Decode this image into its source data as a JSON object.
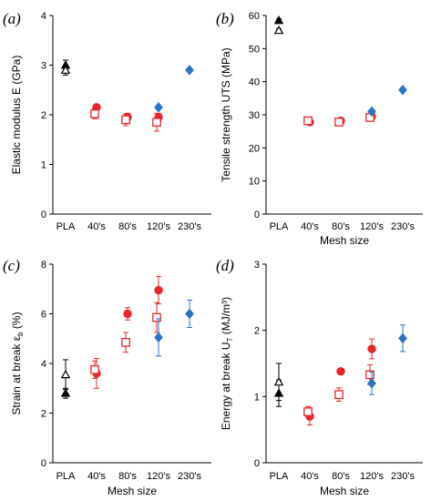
{
  "colors": {
    "black": "#000000",
    "red": "#e8262a",
    "blue": "#2b74c3"
  },
  "legend_markers": {
    "PLA": [
      "filled-triangle",
      "open-triangle"
    ],
    "40s_80s_120s": [
      "filled-circle",
      "open-square"
    ],
    "120s_230s": "blue-diamond"
  },
  "chart_data": [
    {
      "type": "scatter",
      "panel_label": "(a)",
      "ylabel": "Elastic modulus E (GPa)",
      "xlabel": "",
      "categories": [
        "PLA",
        "40's",
        "80's",
        "120's",
        "230's"
      ],
      "ylim": [
        0,
        4
      ],
      "yticks": [
        "0",
        "1",
        "2",
        "3",
        "4"
      ],
      "series": [
        {
          "marker": "filled-triangle",
          "color": "black",
          "points": [
            {
              "x": "PLA",
              "y": 3.0,
              "err": 0.1
            }
          ]
        },
        {
          "marker": "open-triangle",
          "color": "black",
          "points": [
            {
              "x": "PLA",
              "y": 2.9,
              "err": 0.1
            }
          ]
        },
        {
          "marker": "filled-circle",
          "color": "red",
          "points": [
            {
              "x": "40's",
              "y": 2.15,
              "err": 0.04
            },
            {
              "x": "80's",
              "y": 1.95,
              "err": 0.08
            },
            {
              "x": "120's",
              "y": 1.95,
              "err": 0.08
            }
          ]
        },
        {
          "marker": "open-square",
          "color": "red",
          "points": [
            {
              "x": "40's",
              "y": 2.02,
              "err": 0.1
            },
            {
              "x": "80's",
              "y": 1.9,
              "err": 0.12
            },
            {
              "x": "120's",
              "y": 1.85,
              "err": 0.18
            }
          ]
        },
        {
          "marker": "diamond",
          "color": "blue",
          "points": [
            {
              "x": "120's",
              "y": 2.15,
              "err": 0.04
            },
            {
              "x": "230's",
              "y": 2.9,
              "err": 0.03
            }
          ]
        }
      ]
    },
    {
      "type": "scatter",
      "panel_label": "(b)",
      "ylabel": "Tensile strength UTS (MPa)",
      "xlabel": "Mesh size",
      "categories": [
        "PLA",
        "40's",
        "80's",
        "120's",
        "230's"
      ],
      "ylim": [
        0,
        60
      ],
      "yticks": [
        "0",
        "10",
        "20",
        "30",
        "40",
        "50",
        "60"
      ],
      "series": [
        {
          "marker": "filled-triangle",
          "color": "black",
          "points": [
            {
              "x": "PLA",
              "y": 58.5,
              "err": 0.5
            }
          ]
        },
        {
          "marker": "open-triangle",
          "color": "black",
          "points": [
            {
              "x": "PLA",
              "y": 55.5,
              "err": 0.5
            }
          ]
        },
        {
          "marker": "filled-circle",
          "color": "red",
          "points": [
            {
              "x": "40's",
              "y": 27.8,
              "err": 0.4
            },
            {
              "x": "80's",
              "y": 28.2,
              "err": 0.4
            },
            {
              "x": "120's",
              "y": 29.5,
              "err": 0.5
            }
          ]
        },
        {
          "marker": "open-square",
          "color": "red",
          "points": [
            {
              "x": "40's",
              "y": 28.2,
              "err": 0.4
            },
            {
              "x": "80's",
              "y": 27.8,
              "err": 0.5
            },
            {
              "x": "120's",
              "y": 29.2,
              "err": 0.5
            }
          ]
        },
        {
          "marker": "diamond",
          "color": "blue",
          "points": [
            {
              "x": "120's",
              "y": 31.0,
              "err": 0.4
            },
            {
              "x": "230's",
              "y": 37.5,
              "err": 0.3
            }
          ]
        }
      ]
    },
    {
      "type": "scatter",
      "panel_label": "(c)",
      "ylabel": "Strain at break εb (%)",
      "ylabel_parts": [
        "Strain at break ε",
        "b",
        " (%)"
      ],
      "xlabel": "Mesh size",
      "categories": [
        "PLA",
        "40's",
        "80's",
        "120's",
        "230's"
      ],
      "ylim": [
        0,
        8
      ],
      "yticks": [
        "0",
        "2",
        "4",
        "6",
        "8"
      ],
      "series": [
        {
          "marker": "filled-triangle",
          "color": "black",
          "points": [
            {
              "x": "PLA",
              "y": 2.8,
              "err": 0.2
            }
          ]
        },
        {
          "marker": "open-triangle",
          "color": "black",
          "points": [
            {
              "x": "PLA",
              "y": 3.55,
              "err": 0.6
            }
          ]
        },
        {
          "marker": "filled-circle",
          "color": "red",
          "points": [
            {
              "x": "40's",
              "y": 3.6,
              "err": 0.6
            },
            {
              "x": "80's",
              "y": 6.0,
              "err": 0.25
            },
            {
              "x": "120's",
              "y": 6.95,
              "err": 0.55
            }
          ]
        },
        {
          "marker": "open-square",
          "color": "red",
          "points": [
            {
              "x": "40's",
              "y": 3.75,
              "err": 0.35
            },
            {
              "x": "80's",
              "y": 4.85,
              "err": 0.4
            },
            {
              "x": "120's",
              "y": 5.85,
              "err": 0.6
            }
          ]
        },
        {
          "marker": "diamond",
          "color": "blue",
          "points": [
            {
              "x": "120's",
              "y": 5.05,
              "err": 0.75
            },
            {
              "x": "230's",
              "y": 6.0,
              "err": 0.55
            }
          ]
        }
      ]
    },
    {
      "type": "scatter",
      "panel_label": "(d)",
      "ylabel": "Energy at break UT (MJ/m³)",
      "ylabel_parts": [
        "Energy at break U",
        "T",
        " (MJ/m³)"
      ],
      "xlabel": "Mesh size",
      "categories": [
        "PLA",
        "40's",
        "80's",
        "120's",
        "230's"
      ],
      "ylim": [
        0,
        3
      ],
      "yticks": [
        "0",
        "1",
        "2",
        "3"
      ],
      "series": [
        {
          "marker": "filled-triangle",
          "color": "black",
          "points": [
            {
              "x": "PLA",
              "y": 1.05,
              "err": 0.2
            }
          ]
        },
        {
          "marker": "open-triangle",
          "color": "black",
          "points": [
            {
              "x": "PLA",
              "y": 1.22,
              "err": 0.28
            }
          ]
        },
        {
          "marker": "filled-circle",
          "color": "red",
          "points": [
            {
              "x": "40's",
              "y": 0.7,
              "err": 0.13
            },
            {
              "x": "80's",
              "y": 1.38,
              "err": 0.04
            },
            {
              "x": "120's",
              "y": 1.72,
              "err": 0.15
            }
          ]
        },
        {
          "marker": "open-square",
          "color": "red",
          "points": [
            {
              "x": "40's",
              "y": 0.77,
              "err": 0.08
            },
            {
              "x": "80's",
              "y": 1.03,
              "err": 0.1
            },
            {
              "x": "120's",
              "y": 1.33,
              "err": 0.15
            }
          ]
        },
        {
          "marker": "diamond",
          "color": "blue",
          "points": [
            {
              "x": "120's",
              "y": 1.2,
              "err": 0.17
            },
            {
              "x": "230's",
              "y": 1.88,
              "err": 0.2
            }
          ]
        }
      ]
    }
  ]
}
